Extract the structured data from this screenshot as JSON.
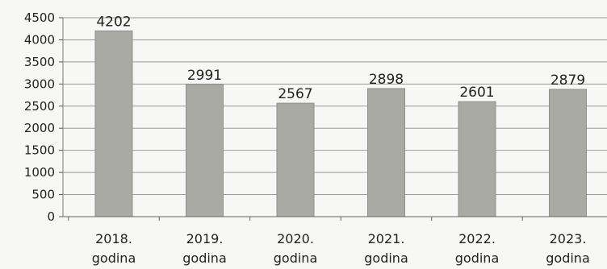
{
  "chart_data": {
    "type": "bar",
    "categories": [
      [
        "2018.",
        "godina"
      ],
      [
        "2019.",
        "godina"
      ],
      [
        "2020.",
        "godina"
      ],
      [
        "2021.",
        "godina"
      ],
      [
        "2022.",
        "godina"
      ],
      [
        "2023.",
        "godina"
      ]
    ],
    "values": [
      4202,
      2991,
      2567,
      2898,
      2601,
      2879
    ],
    "data_labels": [
      "4202",
      "2991",
      "2567",
      "2898",
      "2601",
      "2879"
    ],
    "ylim": [
      0,
      4500
    ],
    "yticks": [
      0,
      500,
      1000,
      1500,
      2000,
      2500,
      3000,
      3500,
      4000,
      4500
    ],
    "grid": true,
    "legend": "none",
    "bar_color": "#a9aaa4",
    "grid_color": "#9a9a96"
  }
}
